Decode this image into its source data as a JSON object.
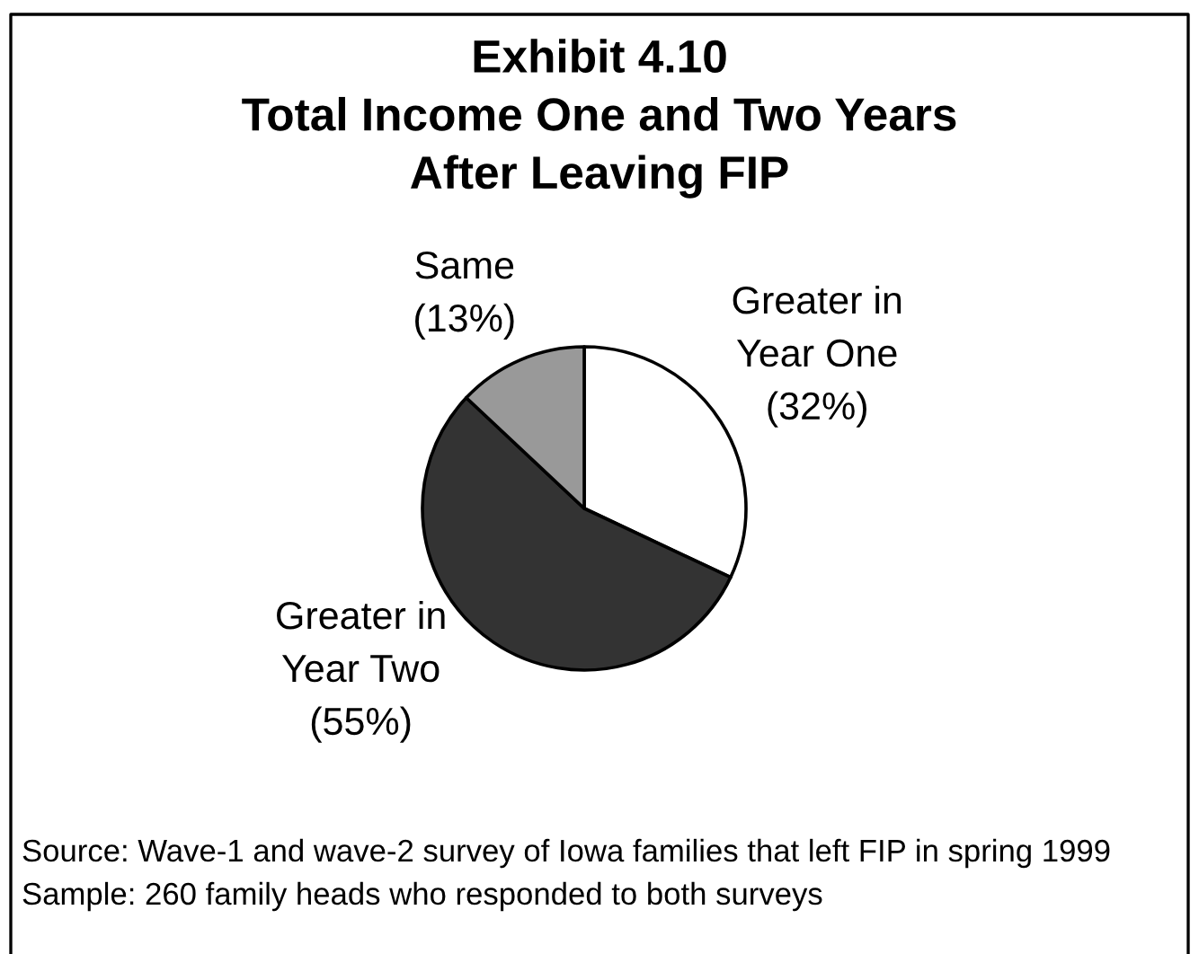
{
  "chart_data": {
    "type": "pie",
    "title": "Exhibit 4.10\nTotal Income One and Two Years\nAfter Leaving FIP",
    "categories": [
      "Greater in\nYear One",
      "Greater in\nYear Two",
      "Same"
    ],
    "values": [
      32,
      55,
      13
    ],
    "colors": [
      "#ffffff",
      "#333333",
      "#999999"
    ],
    "value_labels": [
      "(32%)",
      "(55%)",
      "(13%)"
    ],
    "annotations": [
      "Source: Wave-1 and wave-2 survey of Iowa families that left FIP in spring 1999",
      "Sample: 260 family heads who responded to both surveys"
    ]
  }
}
